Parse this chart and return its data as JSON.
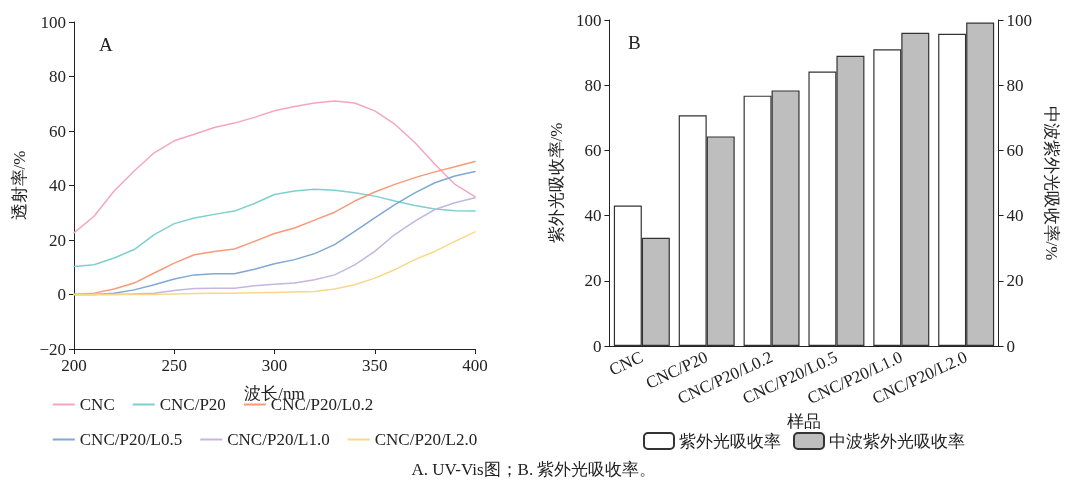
{
  "chart_data": [
    {
      "type": "line",
      "title": "A",
      "xlabel": "波长/nm",
      "ylabel": "透射率/%",
      "x": [
        200,
        210,
        220,
        230,
        240,
        250,
        260,
        270,
        280,
        290,
        300,
        310,
        320,
        330,
        340,
        350,
        360,
        370,
        380,
        390,
        400
      ],
      "xlim": [
        200,
        400
      ],
      "xticks": [
        200,
        250,
        300,
        350,
        400
      ],
      "ylim": [
        -20,
        100
      ],
      "yticks": [
        {
          "value": -20,
          "label": "−20"
        },
        0,
        20,
        40,
        60,
        80,
        100
      ],
      "grid": false,
      "legend": "bottom",
      "marker": "none",
      "line_style": "solid",
      "annotations": [
        "A. UV-Vis图；B. 紫外光吸收率。"
      ],
      "series": [
        {
          "name": "CNC",
          "color": "#f4a6c0",
          "values": [
            22.6,
            28.7,
            38,
            45.3,
            52,
            56.4,
            58.8,
            61.3,
            62.9,
            65,
            67.4,
            69,
            70.3,
            71,
            70.3,
            67.4,
            62.5,
            55.8,
            47.8,
            40.4,
            35.9
          ]
        },
        {
          "name": "CNC/P20",
          "color": "#7fcfcf",
          "values": [
            10.3,
            10.9,
            13.4,
            16.5,
            22,
            26,
            28.1,
            29.4,
            30.6,
            33.4,
            36.7,
            38,
            38.6,
            38.3,
            37.3,
            36.1,
            34.3,
            32.7,
            31.4,
            30.7,
            30.6
          ]
        },
        {
          "name": "CNC/P20/L0.2",
          "color": "#f79a7a",
          "values": [
            0,
            0.5,
            2,
            4.2,
            7.9,
            11.5,
            14.6,
            15.8,
            16.7,
            19.5,
            22.4,
            24.4,
            27.3,
            30.2,
            34.3,
            37.6,
            40.4,
            42.9,
            45,
            46.9,
            48.8
          ]
        },
        {
          "name": "CNC/P20/L0.5",
          "color": "#7fa8d4",
          "values": [
            0,
            0,
            0.5,
            1.7,
            3.6,
            5.7,
            7.2,
            7.6,
            7.6,
            9.3,
            11.3,
            12.8,
            15,
            18.3,
            23.2,
            28.1,
            33,
            37.3,
            41,
            43.5,
            45.1
          ]
        },
        {
          "name": "CNC/P20/L1.0",
          "color": "#c4b6e0",
          "values": [
            0,
            0,
            0,
            0.2,
            0.5,
            1.5,
            2.2,
            2.3,
            2.3,
            3.2,
            3.8,
            4.2,
            5.4,
            7.2,
            10.9,
            15.8,
            22,
            26.9,
            31.2,
            33.7,
            35.5
          ]
        },
        {
          "name": "CNC/P20/L2.0",
          "color": "#f8d888",
          "values": [
            0,
            0,
            0,
            0,
            0,
            0.2,
            0.4,
            0.5,
            0.5,
            0.6,
            0.7,
            0.9,
            1.1,
            2,
            3.6,
            6,
            9.1,
            12.8,
            15.8,
            19.5,
            23
          ]
        }
      ]
    },
    {
      "type": "bar",
      "title": "B",
      "xlabel": "样品",
      "ylabel": "紫外光吸收率/%",
      "y2label": "中波紫外光吸收率/%",
      "categories": [
        "CNC",
        "CNC/P20",
        "CNC/P20/L0.2",
        "CNC/P20/L0.5",
        "CNC/P20/L1.0",
        "CNC/P20/L2.0"
      ],
      "ylim": [
        0,
        100
      ],
      "yticks": [
        0,
        20,
        40,
        60,
        80,
        100
      ],
      "y2lim": [
        0,
        100
      ],
      "y2ticks": [
        0,
        20,
        40,
        60,
        80,
        100
      ],
      "grid": false,
      "legend": "bottom",
      "series": [
        {
          "name": "紫外光吸收率",
          "color": "#ffffff",
          "values": [
            43.1,
            70.8,
            76.8,
            84.2,
            91,
            95.8
          ]
        },
        {
          "name": "中波紫外光吸收率",
          "color": "#bebebe",
          "axis": "y2",
          "values": [
            33.2,
            64.3,
            78.4,
            89,
            96.1,
            99.2
          ]
        }
      ]
    }
  ]
}
